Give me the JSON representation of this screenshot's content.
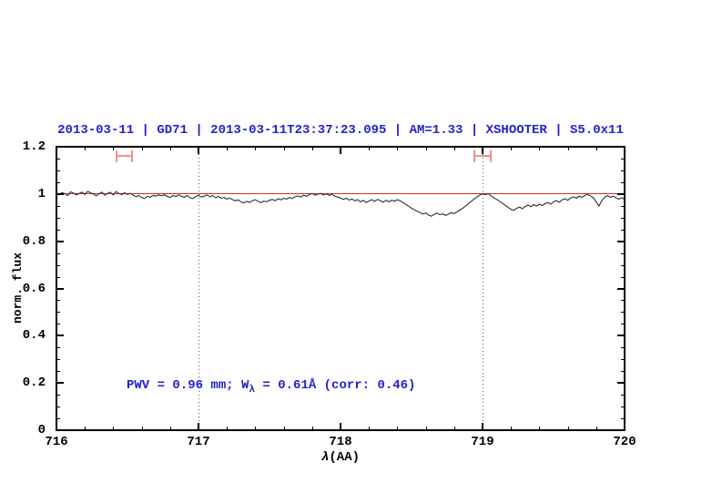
{
  "chart_data": {
    "type": "line",
    "title": "2013-03-11 | GD71 | 2013-03-11T23:37:23.095 | AM=1.33 | XSHOOTER | S5.0x11",
    "title_color": "#2222cc",
    "xlabel_prefix": "λ",
    "xlabel_suffix": "(AA)",
    "ylabel": "norm. flux",
    "xlim": [
      716,
      720
    ],
    "ylim": [
      0,
      1.2
    ],
    "xticks": [
      716,
      717,
      718,
      719,
      720
    ],
    "xtick_labels": [
      "716",
      "717",
      "718",
      "719",
      "720"
    ],
    "yticks": [
      0,
      0.2,
      0.4,
      0.6,
      0.8,
      1,
      1.2
    ],
    "ytick_labels": [
      "0",
      "0.2",
      "0.4",
      "0.6",
      "0.8",
      "1",
      "1.2"
    ],
    "x_minor_step": 0.2,
    "y_minor_step": 0.05,
    "grid": "off",
    "vlines": {
      "x": [
        717,
        719
      ],
      "color": "#555555"
    },
    "continuum": {
      "y": 1.0,
      "color": "#d03030"
    },
    "range_markers": {
      "y": 1.16,
      "half_width": 0.055,
      "cap_half_height": 0.026,
      "color": "#f09090",
      "centers": [
        716.48,
        719.0
      ]
    },
    "annotation": {
      "part1": "PWV = 0.96 mm; W",
      "part2": "λ",
      "part3": " = 0.61Å (corr: 0.46)",
      "color": "#2222cc"
    },
    "series": [
      {
        "name": "spectrum",
        "color": "#2e2e2e",
        "x_start": 716.0,
        "x_step": 0.02,
        "flux": [
          1.0,
          0.997,
          1.006,
          1.001,
          0.993,
          1.009,
          1.004,
          0.996,
          1.002,
          1.008,
          0.998,
          1.011,
          1.005,
          1.0,
          0.992,
          1.001,
          1.008,
          0.995,
          1.003,
          1.007,
          0.996,
          1.01,
          1.002,
          0.997,
          1.005,
          0.998,
          1.003,
          0.995,
          0.989,
          0.993,
          0.985,
          0.981,
          0.99,
          0.986,
          0.994,
          0.991,
          0.997,
          0.992,
          0.997,
          0.99,
          0.985,
          0.994,
          0.989,
          0.996,
          0.991,
          0.986,
          0.993,
          0.984,
          0.981,
          0.989,
          0.994,
          0.987,
          0.991,
          0.996,
          0.988,
          0.993,
          0.984,
          0.99,
          0.982,
          0.986,
          0.978,
          0.983,
          0.976,
          0.971,
          0.975,
          0.966,
          0.962,
          0.969,
          0.964,
          0.972,
          0.976,
          0.968,
          0.963,
          0.97,
          0.967,
          0.973,
          0.977,
          0.971,
          0.98,
          0.975,
          0.982,
          0.978,
          0.985,
          0.981,
          0.988,
          0.992,
          0.987,
          0.995,
          0.99,
          0.998,
          1.002,
          0.995,
          0.999,
          1.003,
          0.996,
          1.001,
          0.994,
          0.999,
          0.991,
          0.987,
          0.983,
          0.977,
          0.982,
          0.974,
          0.979,
          0.971,
          0.976,
          0.967,
          0.973,
          0.964,
          0.97,
          0.976,
          0.968,
          0.977,
          0.972,
          0.965,
          0.973,
          0.967,
          0.974,
          0.969,
          0.976,
          0.971,
          0.963,
          0.956,
          0.948,
          0.94,
          0.933,
          0.927,
          0.921,
          0.915,
          0.92,
          0.911,
          0.906,
          0.914,
          0.919,
          0.912,
          0.916,
          0.909,
          0.915,
          0.921,
          0.917,
          0.924,
          0.932,
          0.94,
          0.949,
          0.959,
          0.969,
          0.978,
          0.987,
          0.995,
          1.001,
          0.997,
          1.002,
          0.992,
          0.984,
          0.977,
          0.969,
          0.961,
          0.952,
          0.943,
          0.935,
          0.931,
          0.939,
          0.945,
          0.938,
          0.947,
          0.953,
          0.946,
          0.955,
          0.949,
          0.957,
          0.951,
          0.959,
          0.964,
          0.957,
          0.967,
          0.972,
          0.965,
          0.975,
          0.98,
          0.973,
          0.983,
          0.988,
          0.982,
          0.991,
          0.986,
          0.994,
          0.998,
          0.992,
          0.984,
          0.967,
          0.949,
          0.971,
          0.987,
          0.993,
          0.986,
          0.991,
          0.983,
          0.978,
          0.984,
          0.977
        ]
      }
    ]
  }
}
